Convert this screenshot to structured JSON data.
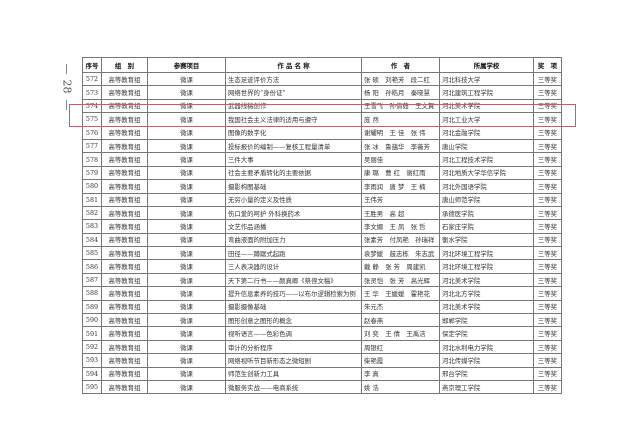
{
  "page_number": "28",
  "headers": [
    "序号",
    "组　别",
    "参赛项目",
    "作 品 名 称",
    "作　者",
    "所属学校",
    "奖　项"
  ],
  "rows": [
    [
      "572",
      "高等教育组",
      "微课",
      "生态足迹评价方法",
      "张 硕　刘艳芳　段二红",
      "河北科技大学",
      "三等奖"
    ],
    [
      "573",
      "高等教育组",
      "微课",
      "网络世界的“身份证”",
      "杨 阳　孙皓月　秦晓慧",
      "河北建筑工程学院",
      "三等奖"
    ],
    [
      "574",
      "高等教育组",
      "微课",
      "武器线稿创作",
      "王雪飞　孙倩茹　王文賀",
      "河北美术学院",
      "三等奖"
    ],
    [
      "575",
      "高等教育组",
      "微课",
      "我国社会主义法律的适用与遵守",
      "庞 然",
      "河北工业大学",
      "三等奖"
    ],
    [
      "576",
      "高等教育组",
      "微课",
      "图像的数字化",
      "谢耀明　王 佳　张 伟",
      "河北金融学院",
      "三等奖"
    ],
    [
      "577",
      "高等教育组",
      "微课",
      "投标报价的编制——复核工程量清单",
      "张 冰　鲁蕴华　李薇芳",
      "唐山学院",
      "三等奖"
    ],
    [
      "578",
      "高等教育组",
      "微课",
      "三件大事",
      "吴丽佳",
      "河北工程技术学院",
      "三等奖"
    ],
    [
      "579",
      "高等教育组",
      "微课",
      "社会主要矛盾转化的主要依据",
      "康 璐　曹 红　谢红雨",
      "河北地质大学华信学院",
      "三等奖"
    ],
    [
      "580",
      "高等教育组",
      "微课",
      "摄影构图基础",
      "李雨润　唐 梦　王 楠",
      "河北外国语学院",
      "三等奖"
    ],
    [
      "581",
      "高等教育组",
      "微课",
      "无穷小量的定义及性质",
      "王伟芳",
      "唐山师范学院",
      "三等奖"
    ],
    [
      "582",
      "高等教育组",
      "微课",
      "伤口爱的呵护 外科换药术",
      "王胜男　高 超",
      "承德医学院",
      "三等奖"
    ],
    [
      "583",
      "高等教育组",
      "微课",
      "文艺作品涵播",
      "李文娜　王 凤　张 哲",
      "石家庄学院",
      "三等奖"
    ],
    [
      "584",
      "高等教育组",
      "微课",
      "弯曲液面的附加压力",
      "张素芳　付凤艳　孙瑞祥",
      "衡水学院",
      "三等奖"
    ],
    [
      "585",
      "高等教育组",
      "微课",
      "田径——蹲踞式起跑",
      "袁梦媛　鼓志栋　朱志武",
      "河北环境工程学院",
      "三等奖"
    ],
    [
      "586",
      "高等教育组",
      "微课",
      "三人表决器的设计",
      "戴 静　张 芳　周建凯",
      "河北环境工程学院",
      "三等奖"
    ],
    [
      "587",
      "高等教育组",
      "微课",
      "天下第二行书——颜真卿《祭侄文稿》",
      "张灵恺　张 芳　高光辉",
      "河北美术学院",
      "三等奖"
    ],
    [
      "588",
      "高等教育组",
      "微课",
      "提升信息素养的技巧——以布尔逻辑检索为例",
      "王 华　王媛媛　霍艳花",
      "河北北方学院",
      "三等奖"
    ],
    [
      "589",
      "高等教育组",
      "微课",
      "摄影摄像基础",
      "朱元杰",
      "河北美术学院",
      "三等奖"
    ],
    [
      "590",
      "高等教育组",
      "微课",
      "图形创意之图形的概念",
      "赵春燕",
      "邯郸学院",
      "三等奖"
    ],
    [
      "591",
      "高等教育组",
      "微课",
      "视听语言——色彩色调",
      "刘 奕　王 倩　王禹洁",
      "保定学院",
      "三等奖"
    ],
    [
      "592",
      "高等教育组",
      "微课",
      "审计的分析程序",
      "周银红",
      "河北水利电力学院",
      "三等奖"
    ],
    [
      "593",
      "高等教育组",
      "微课",
      "网络视听节目新形态之微短剧",
      "柴艳霞",
      "河北传媒学院",
      "三等奖"
    ],
    [
      "594",
      "高等教育组",
      "微课",
      "师范生创新力工具",
      "李 真",
      "邢台学院",
      "三等奖"
    ],
    [
      "595",
      "高等教育组",
      "微课",
      "微服务实战——电商系统",
      "姚 浩",
      "燕京理工学院",
      "三等奖"
    ]
  ],
  "highlight_color": "#d9545c"
}
